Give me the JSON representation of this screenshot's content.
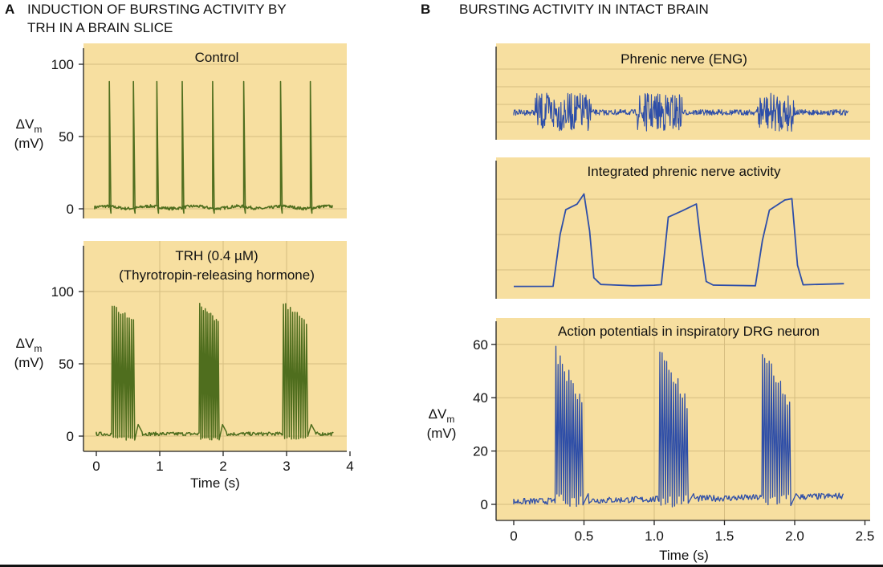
{
  "panels": [
    {
      "letter": "A",
      "title_lines": [
        "INDUCTION OF BURSTING ACTIVITY BY",
        "TRH IN A BRAIN SLICE"
      ]
    },
    {
      "letter": "B",
      "title_lines": [
        "BURSTING ACTIVITY IN INTACT BRAIN"
      ]
    }
  ],
  "colors": {
    "panel_bg": "#f7dfa0",
    "grid": "#d6bd80",
    "trace_green": "#4f6e1e",
    "trace_blue": "#2e4ea8",
    "axis": "#222222"
  },
  "chart_data": [
    {
      "id": "A1",
      "type": "line",
      "title": "Control",
      "ylabel_lines": [
        "ΔV_m",
        "(mV)"
      ],
      "xlim": [
        -0.2,
        4.0
      ],
      "ylim": [
        -5,
        105
      ],
      "yticks": [
        0,
        50,
        100
      ],
      "xticks": [],
      "grid": true,
      "series": [
        {
          "values": "single action-potential trace",
          "spikes_s": [
            0.23,
            0.61,
            0.98,
            1.38,
            1.86,
            2.35,
            2.93,
            3.4
          ],
          "spike_peak_mV": 88,
          "baseline_mV": 0
        }
      ]
    },
    {
      "id": "A2",
      "type": "line",
      "title_lines": [
        "TRH (0.4 µM)",
        "(Thyrotropin-releasing hormone)"
      ],
      "ylabel_lines": [
        "ΔV_m",
        "(mV)"
      ],
      "xlabel": "Time (s)",
      "xlim": [
        -0.2,
        4.0
      ],
      "ylim": [
        -5,
        105
      ],
      "yticks": [
        0,
        50,
        100
      ],
      "xticks": [
        0,
        1,
        2,
        3,
        4
      ],
      "grid": true,
      "series": [
        {
          "bursts_s": [
            [
              0.25,
              0.62
            ],
            [
              1.63,
              1.95
            ],
            [
              2.95,
              3.35
            ]
          ],
          "spikes_per_burst": 11,
          "spike_peak_mV": 93,
          "baseline_mV": 0
        }
      ]
    },
    {
      "id": "B1",
      "type": "line",
      "title": "Phrenic nerve (ENG)",
      "xlim": [
        -0.06,
        2.4
      ],
      "grid": true,
      "series": [
        {
          "bursts_s": [
            [
              0.15,
              0.55
            ],
            [
              0.88,
              1.2
            ],
            [
              1.73,
              2.0
            ]
          ]
        }
      ]
    },
    {
      "id": "B2",
      "type": "line",
      "title": "Integrated phrenic nerve activity",
      "xlim": [
        -0.06,
        2.4
      ],
      "grid": true,
      "series": [
        {
          "bursts_s": [
            [
              0.28,
              0.58
            ],
            [
              1.05,
              1.38
            ],
            [
              1.75,
              2.0
            ]
          ]
        }
      ]
    },
    {
      "id": "B3",
      "type": "line",
      "title": "Action potentials in inspiratory DRG neuron",
      "ylabel_lines": [
        "ΔV_m",
        "(mV)"
      ],
      "xlabel": "Time (s)",
      "xlim": [
        -0.06,
        2.4
      ],
      "ylim": [
        -2,
        68
      ],
      "yticks": [
        0,
        20,
        40,
        60
      ],
      "xticks": [
        0,
        0.5,
        1.0,
        1.5,
        2.0,
        2.5
      ],
      "xtick_labels": [
        "0",
        "0.5",
        "1.0",
        "1.5",
        "2.0",
        "2.5"
      ],
      "grid": true,
      "series": [
        {
          "bursts_s": [
            [
              0.3,
              0.5
            ],
            [
              1.04,
              1.25
            ],
            [
              1.77,
              1.98
            ]
          ],
          "spikes_per_burst": 13,
          "spike_peak_mV": 60,
          "baseline_mV": 0
        }
      ]
    }
  ]
}
